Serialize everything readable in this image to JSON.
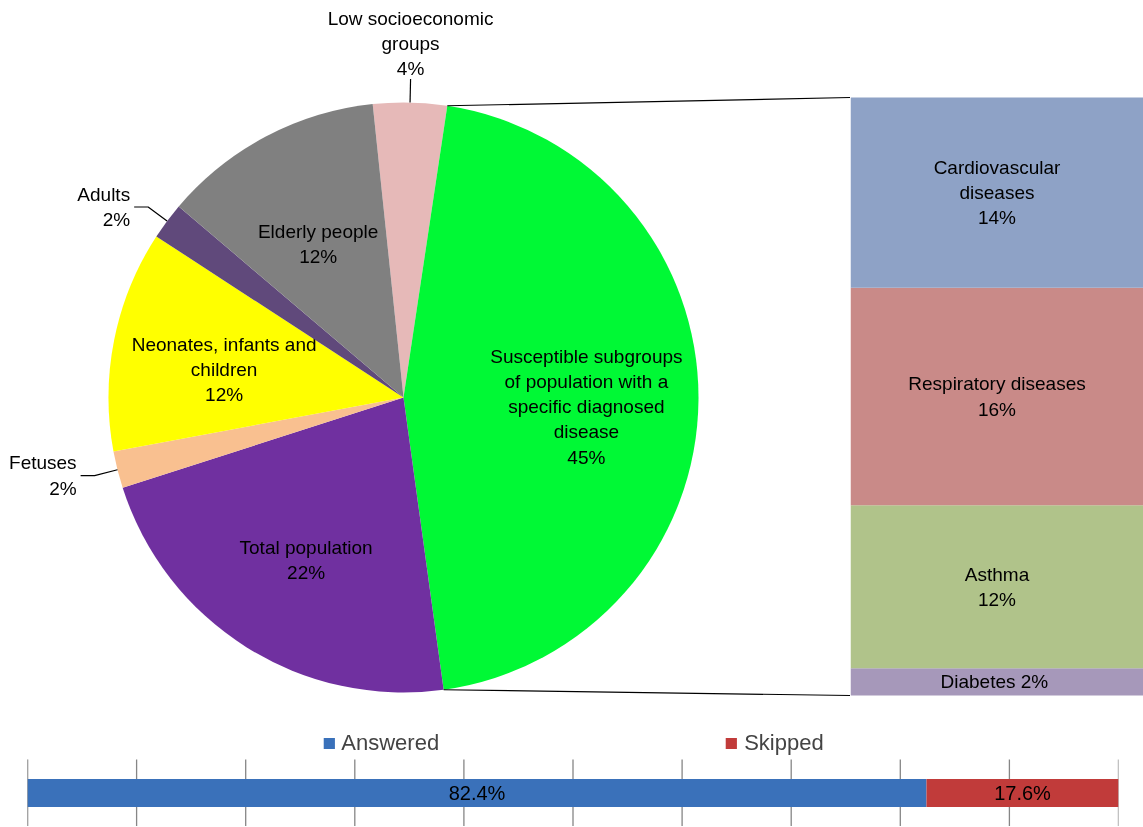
{
  "chart_data": [
    {
      "type": "pie",
      "categories": [
        "Low socioeconomic groups",
        "Susceptible subgroups of population with a specific diagnosed disease",
        "Total population",
        "Fetuses",
        "Neonates, infants and children",
        "Adults",
        "Elderly people"
      ],
      "values": [
        4,
        45,
        22,
        2,
        12,
        2,
        12
      ],
      "value_labels": [
        "4%",
        "45%",
        "22%",
        "2%",
        "12%",
        "2%",
        "12%"
      ],
      "colors": [
        "#e6b9b8",
        "#00f935",
        "#7030a0",
        "#f9c090",
        "#ffff00",
        "#60497b",
        "#808080"
      ]
    },
    {
      "type": "bar",
      "stacked": true,
      "categories": [
        null
      ],
      "series": [
        {
          "name": "Diabetes",
          "color": "#a698ba",
          "values": [
            2
          ],
          "value_labels": [
            "2%"
          ]
        },
        {
          "name": "Asthma",
          "color": "#b0c38a",
          "values": [
            12
          ],
          "value_labels": [
            "12%"
          ]
        },
        {
          "name": "Respiratory diseases",
          "color": "#c98a88",
          "values": [
            16
          ],
          "value_labels": [
            "16%"
          ]
        },
        {
          "name": "Cardiovascular diseases",
          "color": "#8ea2c6",
          "values": [
            14
          ],
          "value_labels": [
            "14%"
          ]
        }
      ]
    },
    {
      "type": "bar",
      "orientation": "horizontal",
      "stacked": true,
      "categories": [
        null
      ],
      "series": [
        {
          "name": "Answered",
          "color": "#3a71ba",
          "values": [
            82.4
          ],
          "value_labels": [
            "82.4%"
          ]
        },
        {
          "name": "Skipped",
          "color": "#c13b3a",
          "values": [
            17.6
          ],
          "value_labels": [
            "17.6%"
          ]
        }
      ],
      "xlim": [
        0,
        100
      ],
      "xticks": [
        {
          "value": 0,
          "label": null
        },
        {
          "value": 10,
          "label": null
        },
        {
          "value": 20,
          "label": null
        },
        {
          "value": 30,
          "label": null
        },
        {
          "value": 40,
          "label": null
        },
        {
          "value": 50,
          "label": null
        },
        {
          "value": 60,
          "label": null
        },
        {
          "value": 70,
          "label": null
        },
        {
          "value": 80,
          "label": null
        },
        {
          "value": 90,
          "label": null
        },
        {
          "value": 100,
          "label": null
        }
      ],
      "tick_labels": false,
      "grid": "x",
      "legend": "top"
    }
  ]
}
